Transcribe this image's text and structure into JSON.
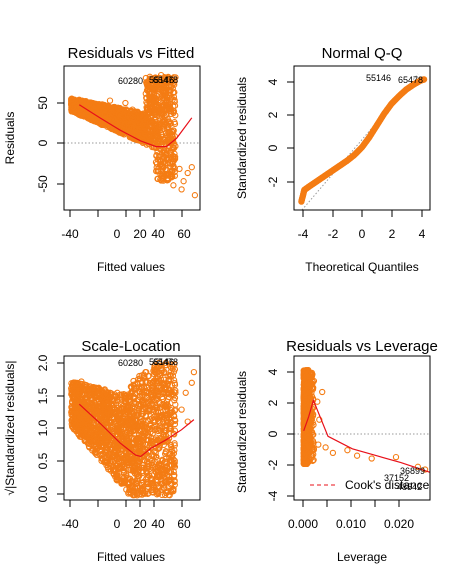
{
  "colors": {
    "points": "#f47c14",
    "smooth": "#e8101a",
    "reference": "#9a9a9a",
    "axis": "#000000"
  },
  "chart_data": [
    {
      "type": "scatter",
      "title": "Residuals vs Fitted",
      "xlabel": "Fitted values",
      "ylabel": "Residuals",
      "xlim": [
        -55,
        78
      ],
      "ylim": [
        -80,
        95
      ],
      "xticks": [
        "-40",
        "0",
        "20",
        "40",
        "60"
      ],
      "yticks": [
        "-50",
        "0",
        "50"
      ],
      "reference_line": {
        "y": 0,
        "style": "dotted"
      },
      "smooth_line": {
        "x": [
          -40,
          -20,
          0,
          20,
          35,
          45,
          55,
          70
        ],
        "y": [
          48,
          32,
          17,
          4,
          -3,
          -3,
          7,
          32
        ]
      },
      "point_labels": [
        "60280",
        "55146",
        "65478"
      ],
      "grid": false
    },
    {
      "type": "scatter",
      "title": "Normal Q-Q",
      "xlabel": "Theoretical Quantiles",
      "ylabel": "Standardized residuals",
      "xlim": [
        -4.6,
        4.6
      ],
      "ylim": [
        -3.8,
        4.8
      ],
      "xticks": [
        "-4",
        "-2",
        "0",
        "2",
        "4"
      ],
      "yticks": [
        "-2",
        "0",
        "2",
        "4"
      ],
      "reference_line": {
        "type": "identity",
        "style": "dotted"
      },
      "quantiles": {
        "x": [
          -4.1,
          -3.9,
          -3.5,
          -3.0,
          -2.5,
          -2.0,
          -1.5,
          -1.0,
          -0.5,
          0.0,
          0.5,
          1.0,
          1.5,
          2.0,
          2.5,
          3.0,
          3.5,
          4.0,
          4.2
        ],
        "y": [
          -3.3,
          -2.6,
          -2.35,
          -2.05,
          -1.75,
          -1.45,
          -1.15,
          -0.85,
          -0.5,
          -0.05,
          0.55,
          1.25,
          1.95,
          2.55,
          3.0,
          3.4,
          3.7,
          3.95,
          4.0
        ]
      },
      "point_labels": [
        "55146",
        "65478"
      ],
      "grid": false
    },
    {
      "type": "scatter",
      "title": "Scale-Location",
      "xlabel": "Fitted values",
      "ylabel": "√|Standardized residuals|",
      "xlim": [
        -55,
        78
      ],
      "ylim": [
        -0.05,
        2.1
      ],
      "xticks": [
        "-40",
        "0",
        "20",
        "40",
        "60"
      ],
      "yticks": [
        "0.0",
        "0.5",
        "1.0",
        "1.5",
        "2.0"
      ],
      "smooth_line": {
        "x": [
          -40,
          -20,
          0,
          15,
          20,
          30,
          45,
          60,
          72
        ],
        "y": [
          1.38,
          1.1,
          0.8,
          0.62,
          0.6,
          0.72,
          0.85,
          1.0,
          1.15
        ]
      },
      "point_labels": [
        "60280",
        "55146",
        "65478"
      ],
      "grid": false
    },
    {
      "type": "scatter",
      "title": "Residuals vs Leverage",
      "xlabel": "Leverage",
      "ylabel": "Standardized residuals",
      "xlim": [
        -0.002,
        0.026
      ],
      "ylim": [
        -5.2,
        5.2
      ],
      "xticks": [
        "0.000",
        "0.010",
        "0.020"
      ],
      "yticks": [
        "-4",
        "-2",
        "0",
        "2",
        "4"
      ],
      "reference_line": {
        "y": 0,
        "style": "dotted"
      },
      "smooth_line": {
        "x": [
          0.0,
          0.001,
          0.002,
          0.005,
          0.01,
          0.015,
          0.02,
          0.026
        ],
        "y": [
          -0.2,
          0.8,
          2.0,
          -0.6,
          -1.5,
          -2.0,
          -2.5,
          -3.2
        ]
      },
      "point_labels": [
        "36899",
        "37152",
        "48542"
      ],
      "legend": {
        "label": "Cook's distance",
        "position": "bottom-right"
      },
      "grid": false
    }
  ]
}
